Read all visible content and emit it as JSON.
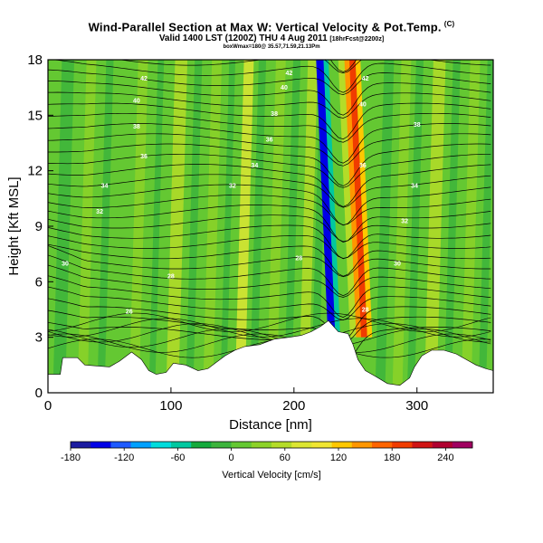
{
  "header": {
    "title": "Wind-Parallel Section at Max W: Vertical Velocity & Pot.Temp.",
    "title_symbol": "(C)",
    "subtitle_main": "Valid 1400 LST (1200Z) THU 4 Aug 2011",
    "subtitle_tag": "[18hrFcst@2200z]",
    "info_line": "boxWmax=180@ 35.57,71.59,21.13Pm"
  },
  "chart_data": {
    "type": "heatmap",
    "title": "Wind-Parallel Section at Max W: Vertical Velocity & Pot.Temp.",
    "xlabel": "Distance [nm]",
    "ylabel": "Height [Kft MSL]",
    "xlim": [
      0,
      362
    ],
    "ylim": [
      0,
      18
    ],
    "x_ticks": [
      "0",
      "100",
      "200",
      "300"
    ],
    "x_tick_values": [
      0,
      100,
      200,
      300
    ],
    "y_ticks": [
      "0",
      "3",
      "6",
      "9",
      "12",
      "15",
      "18"
    ],
    "y_tick_values": [
      0,
      3,
      6,
      9,
      12,
      15,
      18
    ],
    "colorbar": {
      "label": "Vertical Velocity [cm/s]",
      "min": -180,
      "max": 270,
      "tick_labels": [
        "-180",
        "-120",
        "-60",
        "0",
        "60",
        "120",
        "180",
        "240"
      ],
      "tick_values": [
        -180,
        -120,
        -60,
        0,
        60,
        120,
        180,
        240
      ],
      "colors": [
        "#1a1aa0",
        "#0000e6",
        "#1e5aff",
        "#00a0ff",
        "#00dcdc",
        "#00c8a0",
        "#14aa3c",
        "#3cb43c",
        "#64c832",
        "#8cd228",
        "#b4dc28",
        "#dce632",
        "#f0e632",
        "#ffc800",
        "#ff9600",
        "#ff6400",
        "#f03c00",
        "#d01414",
        "#b00030",
        "#a00060"
      ]
    },
    "terrain": [
      {
        "x": 0,
        "z": 1.0
      },
      {
        "x": 10,
        "z": 1.0
      },
      {
        "x": 12,
        "z": 1.9
      },
      {
        "x": 24,
        "z": 1.9
      },
      {
        "x": 30,
        "z": 1.5
      },
      {
        "x": 50,
        "z": 1.4
      },
      {
        "x": 58,
        "z": 1.7
      },
      {
        "x": 68,
        "z": 2.2
      },
      {
        "x": 76,
        "z": 1.8
      },
      {
        "x": 82,
        "z": 1.2
      },
      {
        "x": 88,
        "z": 1.0
      },
      {
        "x": 96,
        "z": 1.1
      },
      {
        "x": 102,
        "z": 1.6
      },
      {
        "x": 112,
        "z": 1.5
      },
      {
        "x": 122,
        "z": 1.2
      },
      {
        "x": 130,
        "z": 1.3
      },
      {
        "x": 136,
        "z": 1.6
      },
      {
        "x": 144,
        "z": 2.0
      },
      {
        "x": 152,
        "z": 2.3
      },
      {
        "x": 160,
        "z": 2.5
      },
      {
        "x": 172,
        "z": 2.6
      },
      {
        "x": 184,
        "z": 2.9
      },
      {
        "x": 196,
        "z": 3.0
      },
      {
        "x": 206,
        "z": 3.1
      },
      {
        "x": 214,
        "z": 3.3
      },
      {
        "x": 222,
        "z": 3.6
      },
      {
        "x": 228,
        "z": 3.9
      },
      {
        "x": 232,
        "z": 3.6
      },
      {
        "x": 236,
        "z": 3.3
      },
      {
        "x": 244,
        "z": 3.2
      },
      {
        "x": 248,
        "z": 2.6
      },
      {
        "x": 252,
        "z": 1.8
      },
      {
        "x": 258,
        "z": 1.2
      },
      {
        "x": 266,
        "z": 0.9
      },
      {
        "x": 276,
        "z": 0.5
      },
      {
        "x": 286,
        "z": 0.4
      },
      {
        "x": 294,
        "z": 0.8
      },
      {
        "x": 298,
        "z": 1.4
      },
      {
        "x": 304,
        "z": 2.0
      },
      {
        "x": 312,
        "z": 2.3
      },
      {
        "x": 322,
        "z": 2.3
      },
      {
        "x": 332,
        "z": 2.1
      },
      {
        "x": 340,
        "z": 1.8
      },
      {
        "x": 348,
        "z": 1.5
      },
      {
        "x": 356,
        "z": 1.3
      },
      {
        "x": 362,
        "z": 1.2
      }
    ],
    "updraft_bands": [
      {
        "x": 224,
        "w": 8,
        "w_value": -150
      },
      {
        "x": 230,
        "w": 4,
        "w_value": -60
      },
      {
        "x": 242,
        "w": 6,
        "w_value": 60
      },
      {
        "x": 247,
        "w": 5,
        "w_value": 150
      },
      {
        "x": 251,
        "w": 5,
        "w_value": 200
      },
      {
        "x": 256,
        "w": 4,
        "w_value": 120
      }
    ],
    "isentrope_labels": [
      {
        "x": 78,
        "z": 17.0,
        "text": "42"
      },
      {
        "x": 72,
        "z": 15.8,
        "text": "40"
      },
      {
        "x": 72,
        "z": 14.4,
        "text": "38"
      },
      {
        "x": 78,
        "z": 12.8,
        "text": "36"
      },
      {
        "x": 46,
        "z": 11.2,
        "text": "34"
      },
      {
        "x": 42,
        "z": 9.8,
        "text": "32"
      },
      {
        "x": 14,
        "z": 7.0,
        "text": "30"
      },
      {
        "x": 100,
        "z": 6.3,
        "text": "28"
      },
      {
        "x": 66,
        "z": 4.4,
        "text": "26"
      },
      {
        "x": 150,
        "z": 11.2,
        "text": "32"
      },
      {
        "x": 168,
        "z": 12.3,
        "text": "34"
      },
      {
        "x": 180,
        "z": 13.7,
        "text": "36"
      },
      {
        "x": 184,
        "z": 15.1,
        "text": "38"
      },
      {
        "x": 192,
        "z": 16.5,
        "text": "40"
      },
      {
        "x": 196,
        "z": 17.3,
        "text": "42"
      },
      {
        "x": 204,
        "z": 7.3,
        "text": "28"
      },
      {
        "x": 300,
        "z": 14.5,
        "text": "38"
      },
      {
        "x": 298,
        "z": 11.2,
        "text": "34"
      },
      {
        "x": 290,
        "z": 9.3,
        "text": "32"
      },
      {
        "x": 284,
        "z": 7.0,
        "text": "30"
      },
      {
        "x": 258,
        "z": 4.5,
        "text": "28"
      },
      {
        "x": 256,
        "z": 15.6,
        "text": "40"
      },
      {
        "x": 258,
        "z": 17.0,
        "text": "42"
      },
      {
        "x": 256,
        "z": 12.3,
        "text": "36"
      }
    ],
    "grid": false,
    "legend": "bottom"
  }
}
